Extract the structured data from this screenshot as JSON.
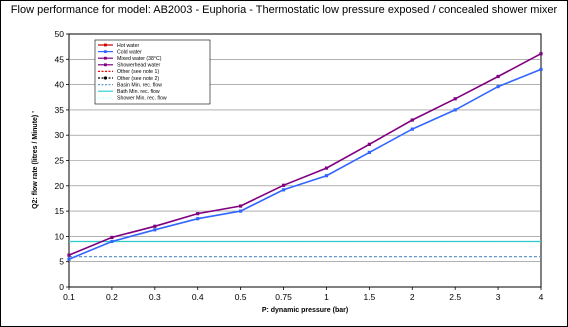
{
  "chart_data": {
    "type": "line",
    "title": "Flow performance for model: AB2003 - Euphoria - Thermostatic low pressure exposed / concealed shower mixer",
    "xlabel": "P: dynamic pressure (bar)",
    "ylabel": "Q2: flow rate (litres / Minute) '",
    "categories": [
      "0.1",
      "0.2",
      "0.3",
      "0.4",
      "0.5",
      "0.75",
      "1",
      "1.5",
      "2",
      "2.5",
      "3",
      "4"
    ],
    "ylim": [
      0,
      50
    ],
    "yticks": [
      0,
      5,
      10,
      15,
      20,
      25,
      30,
      35,
      40,
      45,
      50
    ],
    "grid": "horizontal",
    "legend_position": "top-left",
    "legend": [
      {
        "name": "Hot water",
        "color": "#cc0000",
        "style": "solid",
        "marker": "square"
      },
      {
        "name": "Cold water",
        "color": "#3366ff",
        "style": "solid",
        "marker": "square"
      },
      {
        "name": "Mixed water (38°C)",
        "color": "#800080",
        "style": "solid",
        "marker": "square"
      },
      {
        "name": "Showerhead water",
        "color": "#800080",
        "style": "solid",
        "marker": "square"
      },
      {
        "name": "Other (see note 1)",
        "color": "#ff0000",
        "style": "dashed",
        "marker": "none"
      },
      {
        "name": "Other (see note 2)",
        "color": "#000000",
        "style": "dashed",
        "marker": "circle"
      },
      {
        "name": "Basin Min. rec. flow",
        "color": "#6699cc",
        "style": "dashed",
        "marker": "none"
      },
      {
        "name": "Bath Min. rec. flow",
        "color": "#33cccc",
        "style": "solid",
        "marker": "none"
      },
      {
        "name": "Shower Min. rec. flow",
        "color": "#99ffff",
        "style": "dotted",
        "marker": "none"
      }
    ],
    "series": [
      {
        "name": "Cold water",
        "color": "#3366ff",
        "values": [
          5.5,
          9.0,
          11.3,
          13.5,
          15.0,
          19.2,
          22.0,
          26.6,
          31.2,
          35.0,
          39.6,
          43.0
        ]
      },
      {
        "name": "Mixed water (38°C)",
        "color": "#800080",
        "values": [
          6.3,
          9.8,
          12.0,
          14.5,
          16.0,
          20.1,
          23.5,
          28.2,
          33.0,
          37.2,
          41.6,
          46.1
        ]
      },
      {
        "name": "Shower Min. rec. flow",
        "color": "#99ffff",
        "values": [
          9,
          9,
          9,
          9,
          9,
          9,
          9,
          9,
          9,
          9,
          9,
          9
        ]
      },
      {
        "name": "Bath Min. rec. flow",
        "color": "#33cccc",
        "values": [
          9,
          9,
          9,
          9,
          9,
          9,
          9,
          9,
          9,
          9,
          9,
          9
        ]
      },
      {
        "name": "Basin Min. rec. flow",
        "color": "#6699cc",
        "values": [
          6,
          6,
          6,
          6,
          6,
          6,
          6,
          6,
          6,
          6,
          6,
          6
        ]
      }
    ]
  }
}
